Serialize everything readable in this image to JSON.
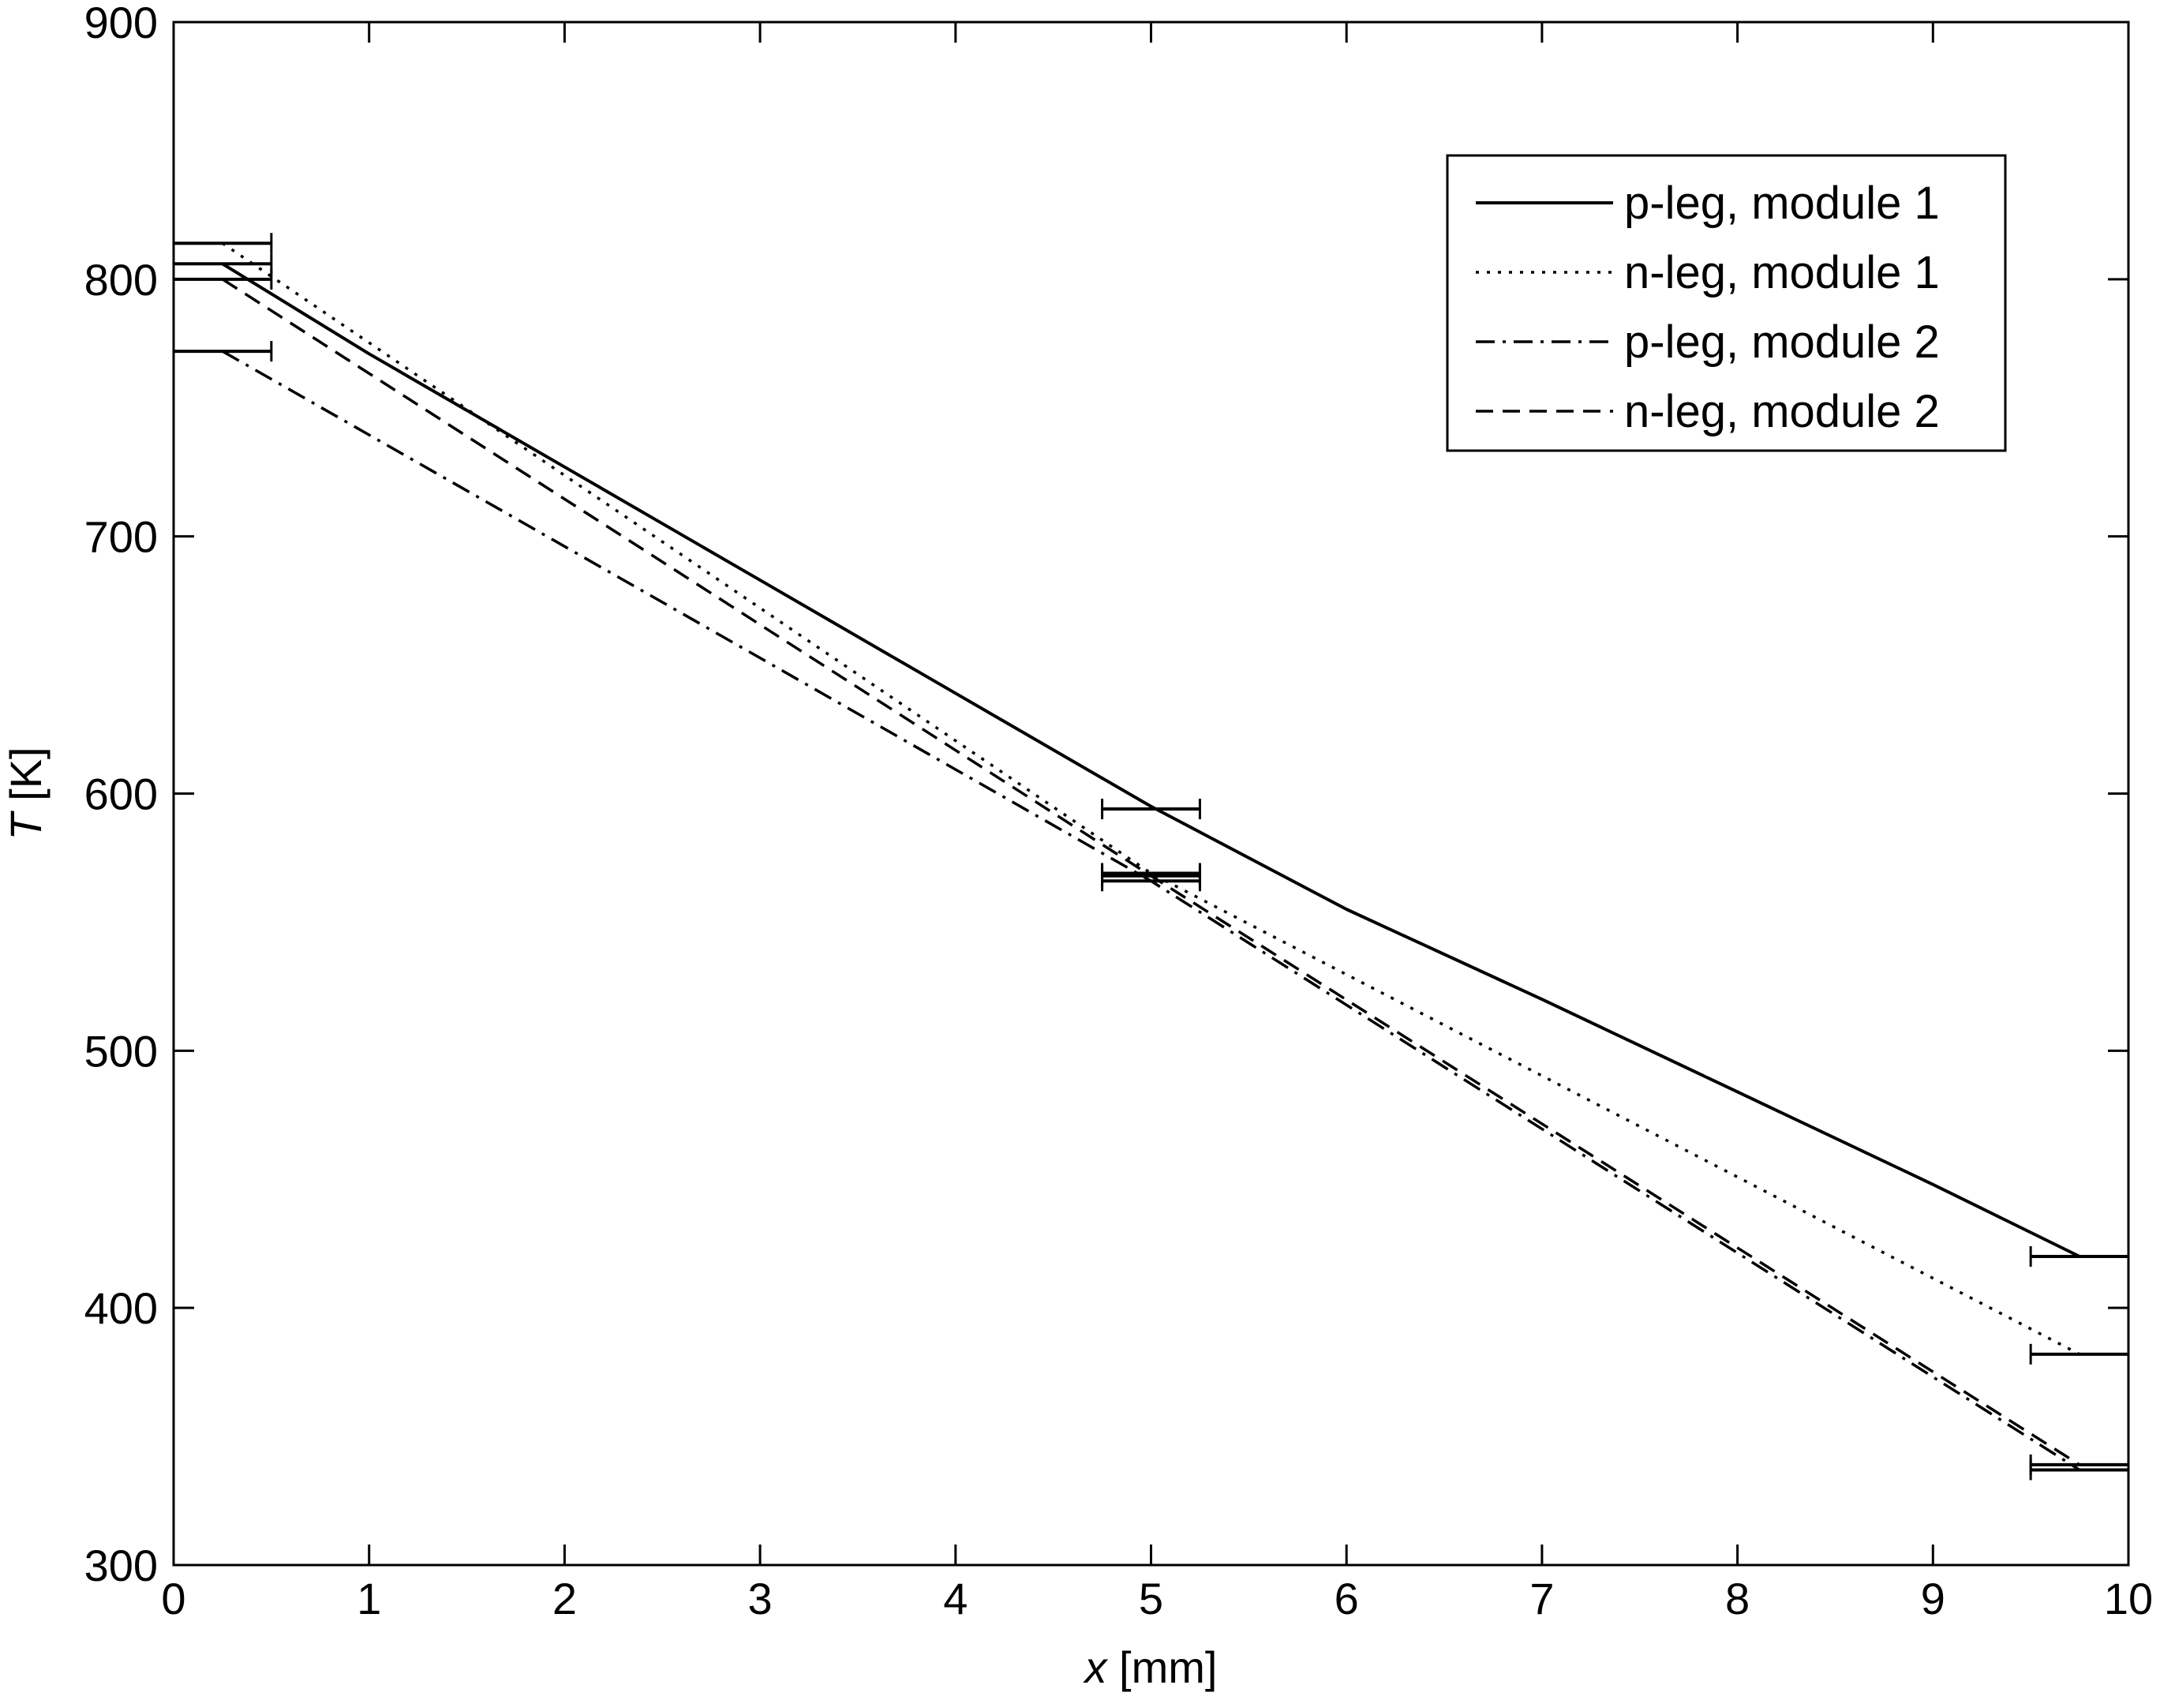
{
  "chart_data": {
    "type": "line",
    "xlabel": {
      "var": "x",
      "unit": " [mm]"
    },
    "ylabel": {
      "var": "T",
      "unit": " [K]"
    },
    "xlim": [
      0,
      10
    ],
    "ylim": [
      300,
      900
    ],
    "xticks": [
      0,
      1,
      2,
      3,
      4,
      5,
      6,
      7,
      8,
      9,
      10
    ],
    "yticks": [
      300,
      400,
      500,
      600,
      700,
      800,
      900
    ],
    "grid": false,
    "legend_position": "top-right",
    "series": [
      {
        "name": "p-leg, module 1",
        "style": "solid",
        "x": [
          0.25,
          1,
          2,
          3,
          4,
          5,
          6,
          7,
          8,
          9,
          9.75
        ],
        "y": [
          806,
          771,
          727,
          683,
          639,
          595,
          555,
          520,
          484,
          448,
          420
        ],
        "errorbars": [
          {
            "x": 0.25,
            "y": 806,
            "xerr": 0.25
          },
          {
            "x": 5.0,
            "y": 594,
            "xerr": 0.25
          },
          {
            "x": 9.75,
            "y": 420,
            "xerr": 0.25
          }
        ]
      },
      {
        "name": "n-leg, module 1",
        "style": "dotted",
        "x": [
          0.25,
          5.0,
          9.75
        ],
        "y": [
          814,
          569,
          382
        ],
        "errorbars": [
          {
            "x": 0.25,
            "y": 814,
            "xerr": 0.25
          },
          {
            "x": 5.0,
            "y": 569,
            "xerr": 0.25
          },
          {
            "x": 9.75,
            "y": 382,
            "xerr": 0.25
          }
        ]
      },
      {
        "name": "p-leg, module 2",
        "style": "dashdot",
        "x": [
          0.25,
          5.0,
          9.75
        ],
        "y": [
          772,
          566,
          337
        ],
        "errorbars": [
          {
            "x": 0.25,
            "y": 772,
            "xerr": 0.25
          },
          {
            "x": 5.0,
            "y": 566,
            "xerr": 0.25
          },
          {
            "x": 9.75,
            "y": 337,
            "xerr": 0.25
          }
        ]
      },
      {
        "name": "n-leg, module 2",
        "style": "dashed",
        "x": [
          0.25,
          5.0,
          9.75
        ],
        "y": [
          800,
          568,
          339
        ],
        "errorbars": [
          {
            "x": 0.25,
            "y": 800,
            "xerr": 0.25
          },
          {
            "x": 5.0,
            "y": 568,
            "xerr": 0.25
          },
          {
            "x": 9.75,
            "y": 339,
            "xerr": 0.25
          }
        ]
      }
    ]
  }
}
